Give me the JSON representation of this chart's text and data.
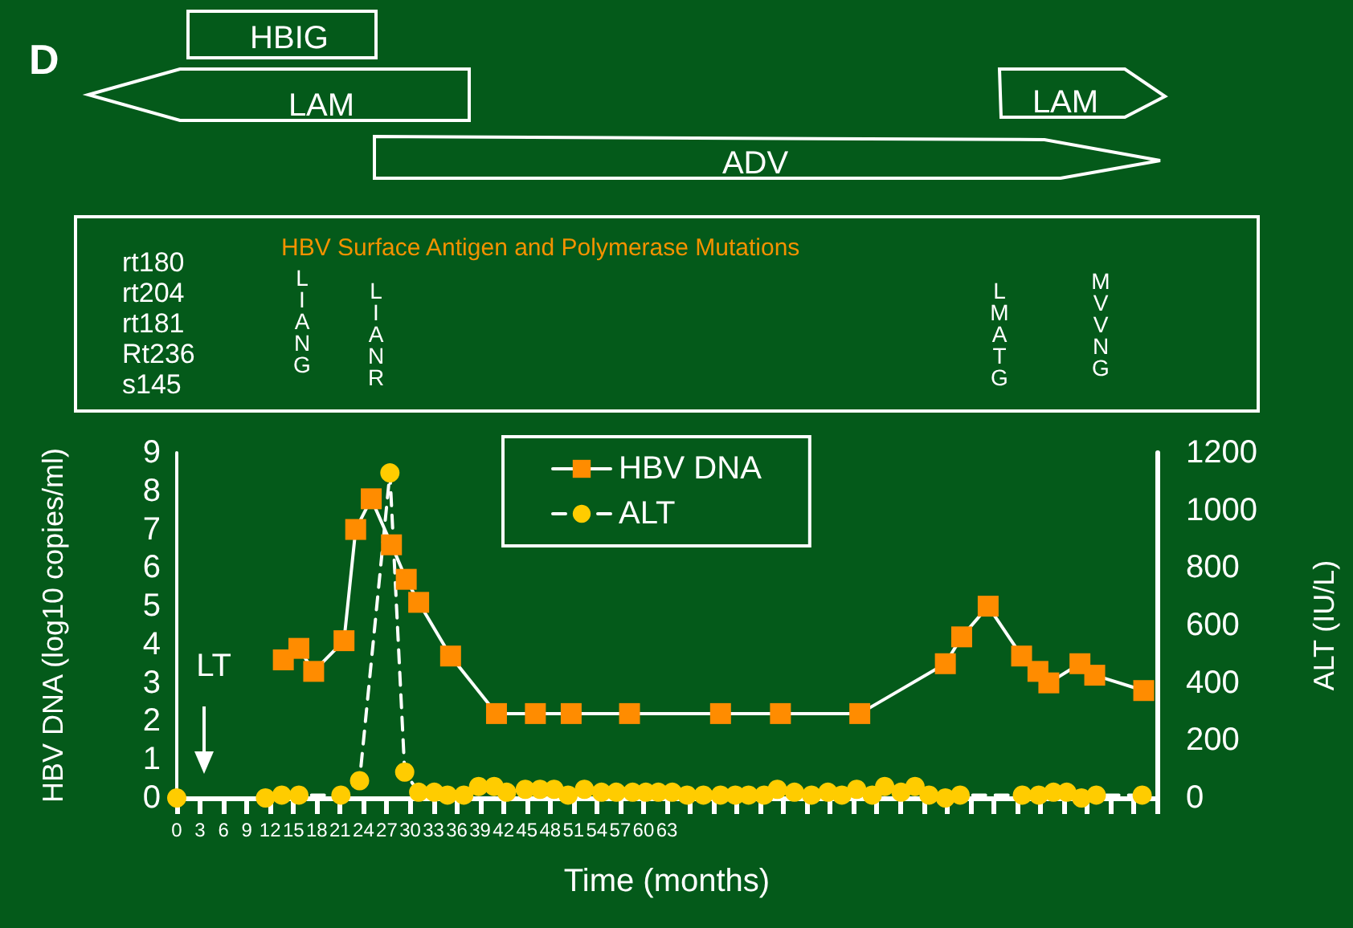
{
  "chart_data": {
    "type": "line",
    "xlabel": "Time (months)",
    "ylabel": "HBV DNA (log10 copies/ml)",
    "y2label": "ALT (IU/L)",
    "xlim": [
      0,
      126
    ],
    "xticks": [
      0,
      3,
      6,
      9,
      12,
      15,
      18,
      21,
      24,
      27,
      30,
      33,
      36,
      39,
      42,
      45,
      48,
      51,
      54,
      57,
      60,
      63,
      {
        "value": 66,
        "label": null
      },
      {
        "value": 69,
        "label": null
      },
      {
        "value": 72,
        "label": null
      },
      {
        "value": 75,
        "label": null
      },
      {
        "value": 78,
        "label": null
      },
      {
        "value": 81,
        "label": null
      },
      {
        "value": 84,
        "label": null
      },
      {
        "value": 87,
        "label": null
      },
      {
        "value": 90,
        "label": null
      },
      {
        "value": 93,
        "label": null
      },
      {
        "value": 96,
        "label": null
      },
      {
        "value": 99,
        "label": null
      },
      {
        "value": 102,
        "label": null
      },
      {
        "value": 105,
        "label": null
      },
      {
        "value": 108,
        "label": null
      },
      {
        "value": 111,
        "label": null
      },
      {
        "value": 114,
        "label": null
      },
      {
        "value": 117,
        "label": null
      },
      {
        "value": 120,
        "label": null
      },
      {
        "value": 123,
        "label": null
      },
      {
        "value": 126,
        "label": null
      }
    ],
    "ylim": [
      0,
      9
    ],
    "yticks": [
      0,
      1,
      2,
      3,
      4,
      5,
      6,
      7,
      8,
      9
    ],
    "y2lim": [
      0,
      1200
    ],
    "y2ticks": [
      0,
      200,
      400,
      600,
      800,
      1000,
      1200
    ],
    "grid": false,
    "legend": "top",
    "series": [
      {
        "name": "HBV DNA",
        "color": "#ff8c00",
        "marker": "square",
        "line_style": "solid",
        "x": [
          13.7,
          15.7,
          17.6,
          21.5,
          23.0,
          25.0,
          27.6,
          29.5,
          31.1,
          35.2,
          41.1,
          46.1,
          50.7,
          58.2,
          69.9,
          77.6,
          87.8,
          98.8,
          100.9,
          104.3,
          108.6,
          110.7,
          112.1,
          116.1,
          118.0,
          124.3
        ],
        "values": [
          3.6,
          3.9,
          3.3,
          4.1,
          7.0,
          7.8,
          6.6,
          5.7,
          5.1,
          3.7,
          2.2,
          2.2,
          2.2,
          2.2,
          2.2,
          2.2,
          2.2,
          3.5,
          4.2,
          5.0,
          3.7,
          3.3,
          3.0,
          3.5,
          3.2,
          2.8
        ]
      },
      {
        "name": "ALT",
        "color": "#ffcc00",
        "marker": "circle",
        "line_style": "dashed",
        "axis": "y2",
        "x": [
          0,
          11.4,
          13.5,
          15.7,
          21.1,
          23.5,
          27.4,
          29.3,
          31.1,
          33.1,
          34.8,
          36.9,
          38.8,
          40.8,
          42.4,
          44.8,
          46.7,
          48.5,
          50.3,
          52.4,
          54.6,
          56.5,
          58.6,
          60.3,
          61.9,
          63.7,
          65.6,
          67.7,
          69.9,
          71.8,
          73.5,
          75.5,
          77.2,
          79.4,
          81.6,
          83.7,
          85.5,
          87.4,
          89.4,
          91.0,
          93.1,
          94.9,
          96.7,
          98.8,
          100.7,
          108.7,
          110.8,
          112.7,
          114.4,
          116.3,
          118.2,
          124.1
        ],
        "values": [
          0,
          0,
          10,
          10,
          10,
          60,
          1130,
          90,
          20,
          20,
          10,
          10,
          40,
          40,
          20,
          30,
          30,
          30,
          10,
          30,
          20,
          20,
          20,
          20,
          20,
          20,
          10,
          10,
          10,
          10,
          10,
          10,
          30,
          20,
          10,
          20,
          10,
          30,
          10,
          40,
          20,
          40,
          10,
          0,
          10,
          10,
          10,
          20,
          20,
          0,
          10,
          10
        ]
      }
    ],
    "annotations": [
      "D",
      "HBIG",
      "LAM",
      "LAM",
      "ADV",
      "HBV Surface Antigen and Polymerase Mutations",
      "rt180",
      "rt204",
      "rt181",
      "Rt236",
      "s145",
      "LIANG",
      "LIANR",
      "LMATG",
      "MVVNG",
      "LT"
    ]
  }
}
